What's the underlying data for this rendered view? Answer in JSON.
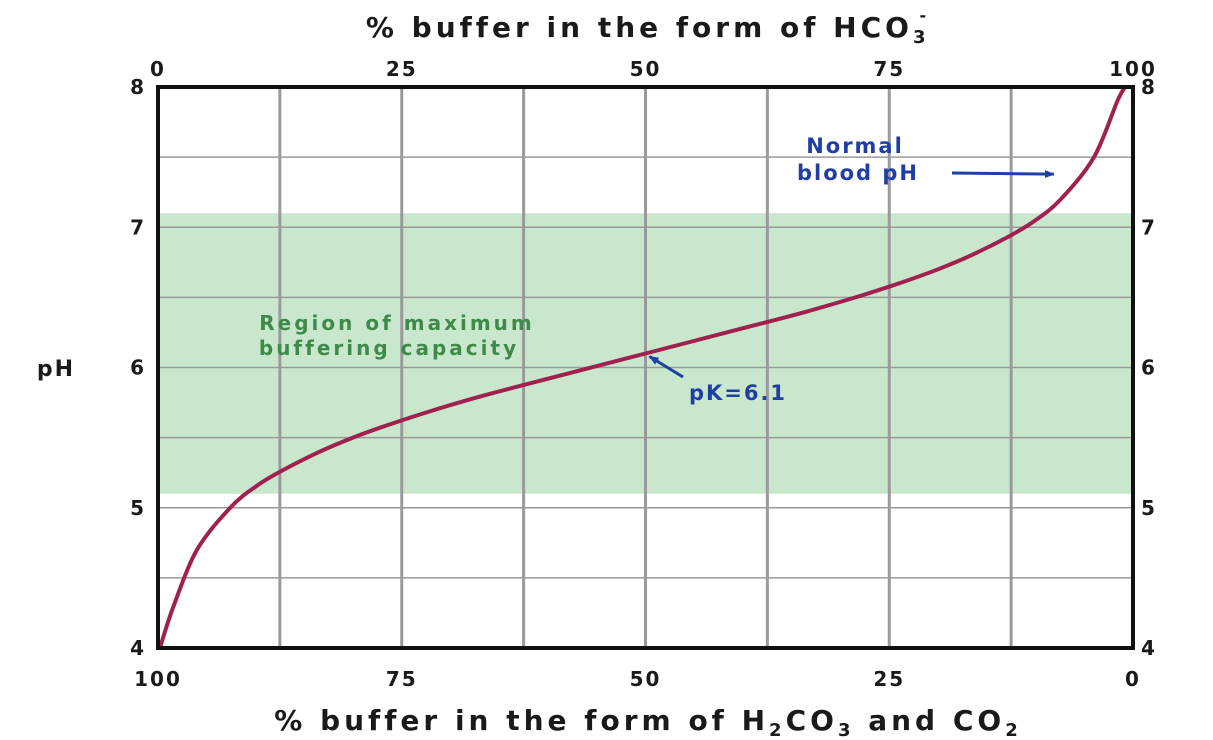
{
  "chart_data": {
    "type": "line",
    "title_top": {
      "text": "% buffer in the form of HCO",
      "sub": "3",
      "sup": "-"
    },
    "title_bottom": {
      "parts": [
        "% buffer in the form of H",
        "2",
        "CO",
        "3",
        " and CO",
        "2"
      ]
    },
    "ylabel": "pH",
    "ylim": [
      4,
      8
    ],
    "xlim": [
      0,
      100
    ],
    "y_ticks": [
      "4",
      "5",
      "6",
      "7",
      "8"
    ],
    "y_tick_values": [
      4,
      5,
      6,
      7,
      8
    ],
    "x_top_ticks": [
      "0",
      "25",
      "50",
      "75",
      "100"
    ],
    "x_top_values": [
      0,
      25,
      50,
      75,
      100
    ],
    "x_bottom_ticks": [
      "100",
      "75",
      "50",
      "25",
      "0"
    ],
    "grid": true,
    "vgrid_x": [
      12.5,
      25,
      37.5,
      50,
      62.5,
      75,
      87.5
    ],
    "hgrid_y": [
      4.5,
      5,
      5.5,
      6,
      6.5,
      7,
      7.5
    ],
    "shaded_region": {
      "ymin": 5.1,
      "ymax": 7.1,
      "color": "#c9e7cd",
      "label_lines": [
        "Region of maximum",
        "buffering capacity"
      ]
    },
    "series": [
      {
        "color": "#a0204e",
        "x": [
          0.2,
          1.6,
          4,
          7.4,
          10,
          12.6,
          16.6,
          20,
          24,
          28,
          33.4,
          40,
          50,
          60,
          66.6,
          72,
          76,
          80,
          83.4,
          87.4,
          90,
          92.6,
          96,
          98.4,
          99.2
        ],
        "y": [
          4.0,
          4.3,
          4.7,
          5.0,
          5.15,
          5.26,
          5.4,
          5.5,
          5.6,
          5.69,
          5.8,
          5.92,
          6.1,
          6.28,
          6.4,
          6.51,
          6.6,
          6.7,
          6.8,
          6.94,
          7.05,
          7.2,
          7.5,
          7.9,
          8.0
        ]
      }
    ],
    "annotations": [
      {
        "lines": [
          "pK=6.1"
        ],
        "point": {
          "x": 50,
          "y": 6.1
        }
      },
      {
        "lines": [
          "Normal",
          "blood pH"
        ],
        "point": {
          "x": 92.7,
          "y": 7.4
        }
      }
    ]
  }
}
